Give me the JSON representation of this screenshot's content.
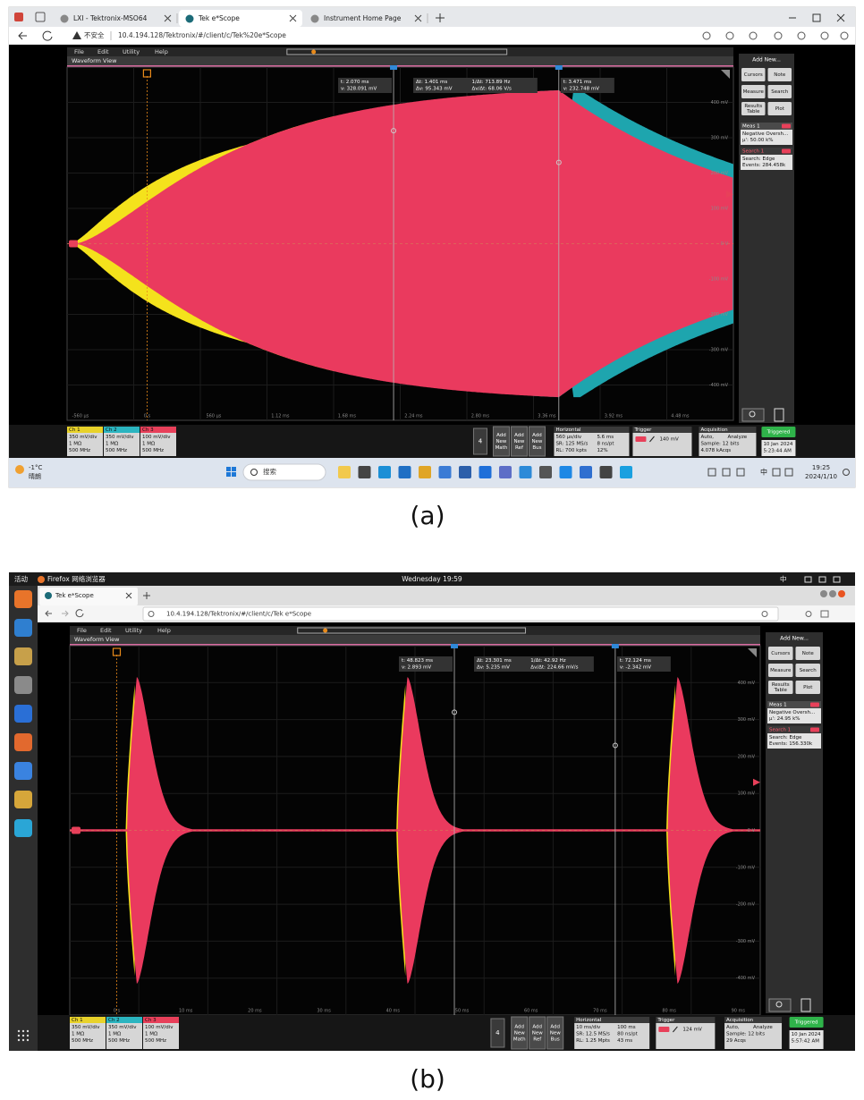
{
  "panels": [
    {
      "caption": "(a)",
      "browser": {
        "tabs": [
          "LXI - Tektronix-MSO64",
          "Tek e*Scope",
          "Instrument Home Page"
        ],
        "security": "不安全",
        "url": "10.4.194.128/Tektronix/#/client/c/Tek%20e*Scope"
      },
      "os": {
        "weather": [
          "-1°C",
          "晴朗"
        ],
        "search": "搜索",
        "input": "中",
        "clock": [
          "19:25",
          "2024/1/10"
        ]
      },
      "scope": {
        "menu": [
          "File",
          "Edit",
          "Utility",
          "Help"
        ],
        "view_title": "Waveform View",
        "cursor_readouts": [
          [
            "t: 2.070 ms",
            "v: 328.091 mV"
          ],
          [
            "Δt: 1.401 ms",
            "1/Δt: 713.89 Hz",
            "Δv: 95.343 mV",
            "Δv/Δt: 68.06 V/s"
          ],
          [
            "t: 3.471 ms",
            "v: 232.748 mV"
          ]
        ],
        "y_labels": [
          "400 mV",
          "300 mV",
          "200 mV",
          "100 mV",
          "0 V",
          "-100 mV",
          "-200 mV",
          "-300 mV",
          "-400 mV"
        ],
        "x_labels": [
          "-560 µs",
          "0 s",
          "560 µs",
          "1.12 ms",
          "1.68 ms",
          "2.24 ms",
          "2.80 ms",
          "3.36 ms",
          "3.92 ms",
          "4.48 ms"
        ],
        "side": {
          "header": "Add New...",
          "buttons": [
            [
              "Cursors"
            ],
            [
              "Note"
            ],
            [
              "Measure"
            ],
            [
              "Search"
            ],
            [
              "Results",
              "Table"
            ],
            [
              "Plot"
            ]
          ],
          "meas_title": "Meas 1",
          "meas_lines": [
            "Negative Oversh...",
            "μ': 50.00 k%"
          ],
          "search_title": "Search 1",
          "search_lines": [
            "Search: Edge",
            "Events: 284.458k"
          ]
        },
        "channels": [
          {
            "name": "Ch 1",
            "lines": [
              "350 mV/div",
              "1 MΩ",
              "500 MHz"
            ]
          },
          {
            "name": "Ch 2",
            "lines": [
              "350 mV/div",
              "1 MΩ",
              "500 MHz"
            ]
          },
          {
            "name": "Ch 3",
            "lines": [
              "100 mV/div",
              "1 MΩ",
              "500 MHz"
            ]
          }
        ],
        "math_count": "4",
        "add_buttons": [
          [
            "Add",
            "New",
            "Math"
          ],
          [
            "Add",
            "New",
            "Ref"
          ],
          [
            "Add",
            "New",
            "Bus"
          ]
        ],
        "horizontal": {
          "title": "Horizontal",
          "rows": [
            [
              "560 µs/div",
              "5.6 ms"
            ],
            [
              "SR: 125 MS/s",
              "8 ns/pt"
            ],
            [
              "RL: 700 kpts",
              "12%"
            ]
          ]
        },
        "trigger": {
          "title": "Trigger",
          "level": "140 mV"
        },
        "acquisition": {
          "title": "Acquisition",
          "rows": [
            [
              "Auto,",
              "Analyze"
            ],
            [
              "Sample: 12 bits"
            ],
            [
              "4.078 kAcqs"
            ]
          ]
        },
        "status": "Triggered",
        "date": "10 Jan 2024",
        "time": "5:23:44 AM"
      }
    },
    {
      "caption": "(b)",
      "browser": {
        "tabs": [
          "Tek e*Scope"
        ],
        "url": "10.4.194.128/Tektronix/#/client/c/Tek e*Scope"
      },
      "os": {
        "activities": "活动",
        "app": "Firefox 网络浏览器",
        "clock": "Wednesday 19:59",
        "input": "中"
      },
      "scope": {
        "menu": [
          "File",
          "Edit",
          "Utility",
          "Help"
        ],
        "view_title": "Waveform View",
        "cursor_readouts": [
          [
            "t: 48.823 ms",
            "v: 2.893 mV"
          ],
          [
            "Δt: 23.301 ms",
            "1/Δt: 42.92 Hz",
            "Δv: 5.235 mV",
            "Δv/Δt: 224.66 mV/s"
          ],
          [
            "t: 72.124 ms",
            "v: -2.342 mV"
          ]
        ],
        "y_labels": [
          "400 mV",
          "300 mV",
          "200 mV",
          "100 mV",
          "0 V",
          "-100 mV",
          "-200 mV",
          "-300 mV",
          "-400 mV"
        ],
        "x_labels": [
          "0 s",
          "10 ms",
          "20 ms",
          "30 ms",
          "40 ms",
          "50 ms",
          "60 ms",
          "70 ms",
          "80 ms",
          "90 ms"
        ],
        "side": {
          "header": "Add New...",
          "buttons": [
            [
              "Cursors"
            ],
            [
              "Note"
            ],
            [
              "Measure"
            ],
            [
              "Search"
            ],
            [
              "Results",
              "Table"
            ],
            [
              "Plot"
            ]
          ],
          "meas_title": "Meas 1",
          "meas_lines": [
            "Negative Oversh...",
            "μ': 24.95 k%"
          ],
          "search_title": "Search 1",
          "search_lines": [
            "Search: Edge",
            "Events: 156.330k"
          ]
        },
        "channels": [
          {
            "name": "Ch 1",
            "lines": [
              "350 mV/div",
              "1 MΩ",
              "500 MHz"
            ]
          },
          {
            "name": "Ch 2",
            "lines": [
              "350 mV/div",
              "1 MΩ",
              "500 MHz"
            ]
          },
          {
            "name": "Ch 3",
            "lines": [
              "100 mV/div",
              "1 MΩ",
              "500 MHz"
            ]
          }
        ],
        "math_count": "4",
        "add_buttons": [
          [
            "Add",
            "New",
            "Math"
          ],
          [
            "Add",
            "New",
            "Ref"
          ],
          [
            "Add",
            "New",
            "Bus"
          ]
        ],
        "horizontal": {
          "title": "Horizontal",
          "rows": [
            [
              "10 ms/div",
              "100 ms"
            ],
            [
              "SR: 12.5 MS/s",
              "80 ns/pt"
            ],
            [
              "RL: 1.25 Mpts",
              "43 ms"
            ]
          ]
        },
        "trigger": {
          "title": "Trigger",
          "level": "124 mV"
        },
        "acquisition": {
          "title": "Acquisition",
          "rows": [
            [
              "Auto,",
              "Analyze"
            ],
            [
              "Sample: 12 bits"
            ],
            [
              "29 Acqs"
            ]
          ]
        },
        "status": "Triggered",
        "date": "10 Jan 2024",
        "time": "5:57:42 AM"
      }
    }
  ]
}
